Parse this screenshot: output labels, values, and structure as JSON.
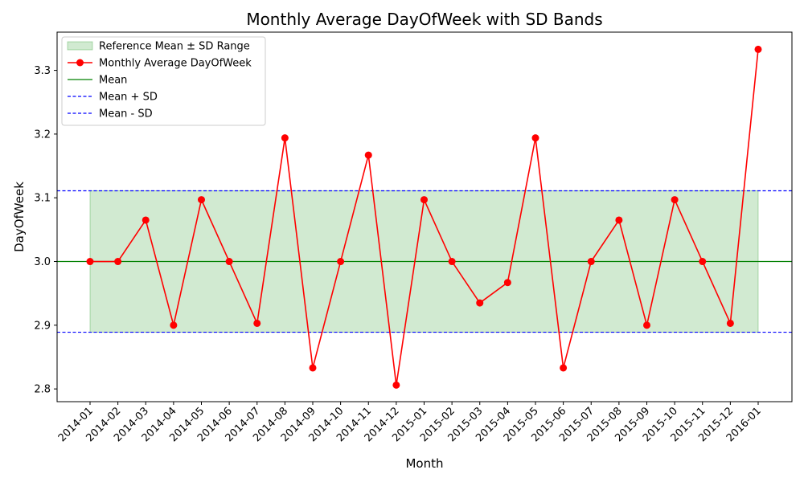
{
  "chart_data": {
    "type": "line",
    "title": "Monthly Average DayOfWeek with SD Bands",
    "xlabel": "Month",
    "ylabel": "DayOfWeek",
    "categories": [
      "2014-01",
      "2014-02",
      "2014-03",
      "2014-04",
      "2014-05",
      "2014-06",
      "2014-07",
      "2014-08",
      "2014-09",
      "2014-10",
      "2014-11",
      "2014-12",
      "2015-01",
      "2015-02",
      "2015-03",
      "2015-04",
      "2015-05",
      "2015-06",
      "2015-07",
      "2015-08",
      "2015-09",
      "2015-10",
      "2015-11",
      "2015-12",
      "2016-01"
    ],
    "series": [
      {
        "name": "Monthly Average DayOfWeek",
        "color": "#ff0000",
        "values": [
          3.0,
          3.0,
          3.065,
          2.9,
          3.097,
          3.0,
          2.903,
          3.194,
          2.833,
          3.0,
          3.167,
          2.806,
          3.097,
          3.0,
          2.935,
          2.967,
          3.194,
          2.833,
          3.0,
          3.065,
          2.9,
          3.097,
          3.0,
          2.903,
          3.333
        ]
      }
    ],
    "mean": 3.0,
    "mean_plus_sd": 3.111,
    "mean_minus_sd": 2.889,
    "ylim": [
      2.78,
      3.36
    ],
    "yticks": [
      2.8,
      2.9,
      3.0,
      3.1,
      3.2,
      3.3
    ],
    "ytick_labels": [
      "2.8",
      "2.9",
      "3.0",
      "3.1",
      "3.2",
      "3.3"
    ],
    "grid": false,
    "legend_position": "top-left",
    "legend": [
      {
        "label": "Reference Mean ± SD Range",
        "kind": "band",
        "color": "#2ca02c"
      },
      {
        "label": "Monthly Average DayOfWeek",
        "kind": "line-marker",
        "color": "#ff0000"
      },
      {
        "label": "Mean",
        "kind": "line",
        "color": "#008000"
      },
      {
        "label": "Mean + SD",
        "kind": "dashed",
        "color": "#0000ff"
      },
      {
        "label": "Mean - SD",
        "kind": "dashed",
        "color": "#0000ff"
      }
    ],
    "colors": {
      "band_fill": "#2ca02c",
      "series_line": "#ff0000",
      "mean_line": "#008000",
      "sd_lines": "#0000ff"
    }
  }
}
